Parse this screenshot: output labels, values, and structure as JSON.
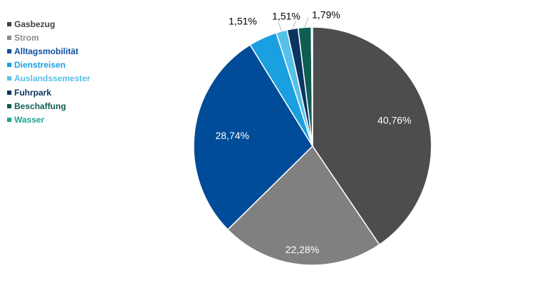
{
  "chart_data": {
    "type": "pie",
    "title": "",
    "legend_position": "left",
    "slices": [
      {
        "name": "Gasbezug",
        "value": 40.76,
        "label": "40,76%",
        "color": "#4d4d4d",
        "legend_color": "#404040",
        "label_color": "#ffffff"
      },
      {
        "name": "Strom",
        "value": 22.28,
        "label": "22,28%",
        "color": "#808080",
        "legend_color": "#8c8c8c",
        "label_color": "#ffffff"
      },
      {
        "name": "Alltagsmobilität",
        "value": 28.74,
        "label": "28,74%",
        "color": "#004c99",
        "legend_color": "#0a4f9e",
        "label_color": "#ffffff"
      },
      {
        "name": "Dienstreisen",
        "value": 3.88,
        "label": "",
        "color": "#1a9fe0",
        "legend_color": "#1a9fe0",
        "label_color": "#ffffff"
      },
      {
        "name": "Auslandssemester",
        "value": 1.51,
        "label": "1,51%",
        "color": "#56c0ea",
        "legend_color": "#56c0ea",
        "label_color": "#000000"
      },
      {
        "name": "Fuhrpark",
        "value": 1.51,
        "label": "1,51%",
        "color": "#0a3560",
        "legend_color": "#0a3560",
        "label_color": "#000000"
      },
      {
        "name": "Beschaffung",
        "value": 1.79,
        "label": "1,79%",
        "color": "#0e5e52",
        "legend_color": "#0e5e52",
        "label_color": "#000000"
      },
      {
        "name": "Wasser",
        "value": 0.17,
        "label": "",
        "color": "#1aa58e",
        "legend_color": "#1aa58e",
        "label_color": "#000000"
      }
    ]
  }
}
